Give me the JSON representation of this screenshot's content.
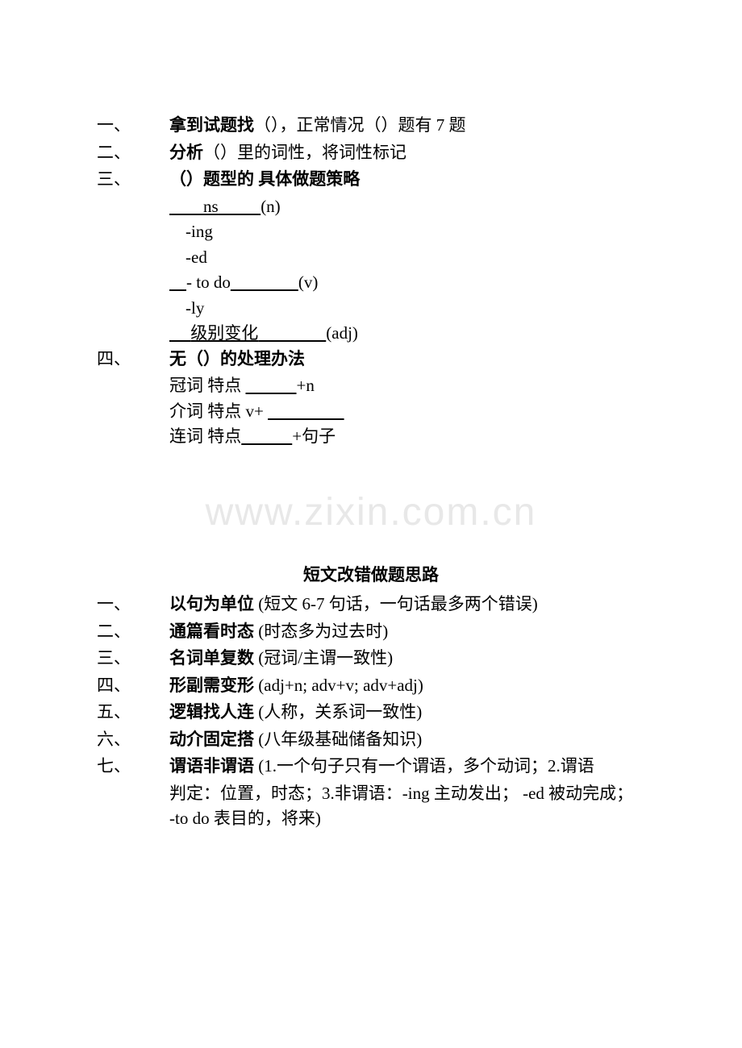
{
  "section1": {
    "items": [
      {
        "num": "一、",
        "bold_text": "拿到试题找",
        "rest": "（），正常情况（）题有 7 题"
      },
      {
        "num": "二、",
        "bold_text": "分析",
        "rest": "（）里的词性，将词性标记"
      },
      {
        "num": "三、",
        "bold_text": "（）题型的  具体做题策略",
        "rest": ""
      }
    ],
    "sub_items": [
      {
        "underline_pre": "            ",
        "text": "ns",
        "underline_post": "          ",
        "suffix": "(n)"
      },
      {
        "text": "-ing"
      },
      {
        "text": "-ed"
      },
      {
        "underline_pre": "      ",
        "text": "- to do",
        "underline_post": "                ",
        "suffix": "(v)"
      },
      {
        "text": "-ly"
      },
      {
        "underline_pre": "       ",
        "text": "级别变化",
        "underline_post": "                ",
        "suffix": "(adj)"
      }
    ],
    "item4": {
      "num": "四、",
      "bold_text": "无（）的处理办法"
    },
    "sub_items2": [
      {
        "label": "冠词    特点 ",
        "underline": "            ",
        "suffix": "+n"
      },
      {
        "label": "介词    特点  v+ ",
        "underline": "                  ",
        "suffix": ""
      },
      {
        "label": "连词    特点",
        "underline": "            ",
        "suffix": "+句子"
      }
    ]
  },
  "watermark": "www.zixin.com.cn",
  "section2": {
    "title": "短文改错做题思路",
    "items": [
      {
        "num": "一、",
        "bold_text": "以句为单位",
        "rest": " (短文 6-7 句话，一句话最多两个错误)"
      },
      {
        "num": "二、",
        "bold_text": "通篇看时态",
        "rest": " (时态多为过去时)"
      },
      {
        "num": "三、",
        "bold_text": "名词单复数",
        "rest": " (冠词/主谓一致性)"
      },
      {
        "num": "四、",
        "bold_text": "形副需变形",
        "rest": " (adj+n;    adv+v; adv+adj)"
      },
      {
        "num": "五、",
        "bold_text": "逻辑找人连",
        "rest": " (人称，关系词一致性)"
      },
      {
        "num": "六、",
        "bold_text": "动介固定搭",
        "rest": " (八年级基础储备知识)"
      },
      {
        "num": "七、",
        "bold_text": "谓语非谓语",
        "rest": " (1.一个句子只有一个谓语，多个动词；2.谓语"
      }
    ],
    "wrap_lines": [
      "判定：位置，时态；3.非谓语：-ing 主动发出；  -ed 被动完成；",
      "-to do 表目的，将来)"
    ]
  }
}
